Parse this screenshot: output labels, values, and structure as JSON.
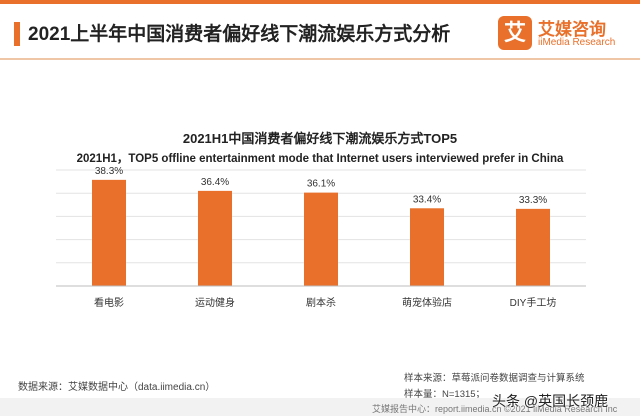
{
  "header": {
    "title": "2021上半年中国消费者偏好线下潮流娱乐方式分析"
  },
  "logo": {
    "mark_glyph": "艾",
    "name_cn": "艾媒咨询",
    "name_en": "iiMedia Research",
    "color": "#e8702a"
  },
  "chart_data": {
    "type": "bar",
    "title": "2021H1中国消费者偏好线下潮流娱乐方式TOP5",
    "subtitle": "2021H1，TOP5 offline entertainment mode that Internet users interviewed prefer in China",
    "categories": [
      "看电影",
      "运动健身",
      "剧本杀",
      "萌宠体验店",
      "DIY手工坊"
    ],
    "values": [
      38.3,
      36.4,
      36.1,
      33.4,
      33.3
    ],
    "value_labels": [
      "38.3%",
      "36.4%",
      "36.1%",
      "33.4%",
      "33.3%"
    ],
    "ylim": [
      20,
      40
    ],
    "grid": true,
    "y_axis_labels_shown": false,
    "bar_color": "#e8702a"
  },
  "footer": {
    "source": "数据来源：艾媒数据中心（data.iimedia.cn）",
    "sample_source": "样本来源：草莓派问卷数据调查与计算系统",
    "sample_size": "样本量：N=1315；",
    "bottom_bar": "艾媒报告中心：report.iimedia.cn    ©2021  iiMedia Research  Inc"
  },
  "watermark": {
    "text": "头条 @英国长颈鹿"
  }
}
